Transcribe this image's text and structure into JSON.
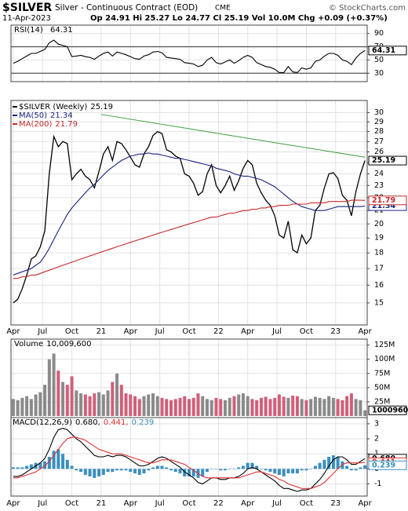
{
  "header": {
    "title": "$SILVER",
    "subtitle": "Silver - Continuous Contract (EOD)",
    "exchange": "CME",
    "source": "© StockCharts.com",
    "date": "11-Apr-2023",
    "quote": "Op 24.91 Hi 25.27 Lo 24.77 Cl 25.19 Vol 10.0M Chg +0.09 (+0.37%)"
  },
  "chart_data": [
    {
      "type": "line",
      "title": "RSI(14)",
      "xlim": [
        0,
        79
      ],
      "xticks": [
        0.5,
        7,
        13.5,
        20,
        26.5,
        33,
        39.5,
        46,
        52.5,
        59,
        65.5,
        72,
        78.5
      ],
      "ylim": [
        22,
        98
      ],
      "yticks": [
        30,
        50,
        70,
        90
      ],
      "bands": [
        30,
        70
      ],
      "grid": true,
      "series": [
        {
          "name": "RSI(14)",
          "color": "#000000",
          "values": [
            45,
            48,
            52,
            56,
            60,
            60,
            63,
            66,
            76,
            80,
            74,
            72,
            70,
            55,
            56,
            57,
            55,
            54,
            51,
            56,
            60,
            62,
            56,
            62,
            60,
            58,
            55,
            52,
            51,
            56,
            58,
            62,
            63,
            61,
            54,
            53,
            52,
            51,
            46,
            45,
            44,
            40,
            42,
            50,
            54,
            46,
            44,
            47,
            50,
            45,
            49,
            54,
            57,
            54,
            46,
            43,
            40,
            39,
            36,
            31,
            31,
            40,
            32,
            31,
            38,
            36,
            38,
            48,
            50,
            56,
            60,
            60,
            57,
            50,
            48,
            43,
            53,
            60,
            64.31
          ]
        }
      ]
    },
    {
      "type": "line",
      "log_scale": true,
      "xlim": [
        0,
        79
      ],
      "xticks": [
        {
          "value": 0.5,
          "label": "Apr"
        },
        {
          "value": 7,
          "label": "Jul"
        },
        {
          "value": 13.5,
          "label": "Oct"
        },
        {
          "value": 20,
          "label": "21"
        },
        {
          "value": 26.5,
          "label": "Apr"
        },
        {
          "value": 33,
          "label": "Jul"
        },
        {
          "value": 39.5,
          "label": "Oct"
        },
        {
          "value": 46,
          "label": "22"
        },
        {
          "value": 52.5,
          "label": "Apr"
        },
        {
          "value": 59,
          "label": "Jul"
        },
        {
          "value": 65.5,
          "label": "Oct"
        },
        {
          "value": 72,
          "label": "23"
        },
        {
          "value": 78.5,
          "label": "Apr"
        }
      ],
      "ylim": [
        14,
        31
      ],
      "yticks": [
        15,
        16,
        17,
        18,
        19,
        20,
        21,
        22,
        23,
        24,
        25,
        26,
        27,
        28,
        29,
        30
      ],
      "grid": true,
      "series": [
        {
          "name": "$SILVER (Weekly)",
          "color": "#000000",
          "values": [
            15.0,
            15.2,
            15.8,
            16.6,
            17.6,
            17.8,
            18.4,
            19.5,
            24.0,
            27.5,
            26.5,
            27.0,
            26.8,
            23.5,
            24.0,
            24.4,
            23.8,
            23.5,
            22.8,
            24.2,
            25.8,
            26.5,
            25.2,
            27.0,
            26.8,
            26.2,
            25.5,
            24.8,
            24.6,
            25.8,
            26.5,
            27.6,
            28.0,
            27.8,
            26.2,
            26.0,
            25.6,
            25.4,
            24.0,
            23.8,
            23.2,
            22.2,
            22.5,
            24.0,
            24.8,
            23.0,
            22.4,
            23.0,
            23.8,
            22.6,
            23.4,
            24.5,
            25.2,
            24.8,
            23.2,
            22.4,
            21.8,
            21.4,
            20.6,
            19.2,
            19.0,
            20.2,
            18.2,
            18.0,
            19.2,
            18.6,
            19.0,
            21.0,
            21.4,
            22.8,
            24.0,
            24.1,
            23.6,
            22.2,
            21.8,
            20.6,
            22.5,
            24.0,
            25.19
          ]
        },
        {
          "name": "MA(50)",
          "color": "#1a237e",
          "values": [
            16.6,
            16.7,
            16.8,
            16.9,
            17.0,
            17.2,
            17.4,
            17.8,
            18.3,
            18.9,
            19.5,
            20.1,
            20.7,
            21.2,
            21.6,
            22.0,
            22.4,
            22.8,
            23.1,
            23.5,
            23.9,
            24.3,
            24.6,
            24.9,
            25.2,
            25.4,
            25.6,
            25.7,
            25.8,
            25.8,
            25.9,
            25.8,
            25.8,
            25.7,
            25.6,
            25.5,
            25.4,
            25.4,
            25.3,
            25.2,
            25.1,
            25.0,
            24.9,
            24.8,
            24.7,
            24.5,
            24.4,
            24.3,
            24.2,
            24.0,
            23.9,
            23.8,
            23.8,
            23.7,
            23.6,
            23.5,
            23.3,
            23.1,
            22.9,
            22.6,
            22.3,
            22.0,
            21.7,
            21.5,
            21.3,
            21.2,
            21.1,
            21.0,
            21.0,
            21.0,
            21.1,
            21.2,
            21.3,
            21.3,
            21.3,
            21.3,
            21.3,
            21.3,
            21.34
          ]
        },
        {
          "name": "MA(200)",
          "color": "#c62828",
          "values": [
            16.4,
            16.4,
            16.5,
            16.5,
            16.6,
            16.6,
            16.7,
            16.8,
            16.9,
            17.0,
            17.1,
            17.2,
            17.3,
            17.4,
            17.5,
            17.6,
            17.7,
            17.8,
            17.9,
            18.0,
            18.1,
            18.2,
            18.3,
            18.4,
            18.5,
            18.6,
            18.7,
            18.8,
            18.9,
            19.0,
            19.1,
            19.2,
            19.3,
            19.4,
            19.5,
            19.6,
            19.7,
            19.8,
            19.9,
            20.0,
            20.1,
            20.2,
            20.3,
            20.4,
            20.5,
            20.5,
            20.6,
            20.7,
            20.8,
            20.8,
            20.9,
            21.0,
            21.0,
            21.1,
            21.1,
            21.2,
            21.2,
            21.3,
            21.3,
            21.4,
            21.4,
            21.4,
            21.5,
            21.5,
            21.5,
            21.5,
            21.6,
            21.6,
            21.6,
            21.6,
            21.7,
            21.7,
            21.7,
            21.7,
            21.7,
            21.8,
            21.8,
            21.8,
            21.79
          ]
        }
      ],
      "trendline": {
        "color": "#3a9e3a",
        "x": [
          20,
          78.5
        ],
        "values": [
          29.8,
          25.5
        ]
      }
    },
    {
      "type": "bar",
      "title": "Volume",
      "last_label": "10,009,600",
      "xlim": [
        0,
        79
      ],
      "xticks": [
        0.5,
        7,
        13.5,
        20,
        26.5,
        33,
        39.5,
        46,
        52.5,
        59,
        65.5,
        72,
        78.5
      ],
      "ylim": [
        0,
        130000000
      ],
      "yticks": [
        {
          "value": 25000000,
          "label": "25M"
        },
        {
          "value": 50000000,
          "label": "50M"
        },
        {
          "value": 75000000,
          "label": "75M"
        },
        {
          "value": 100000000,
          "label": "100M"
        },
        {
          "value": 125000000,
          "label": "125M"
        }
      ],
      "grid": true,
      "up_color": "#8a8a8a",
      "down_color": "#d0607a",
      "values": [
        30000000,
        28000000,
        32000000,
        35000000,
        30000000,
        38000000,
        42000000,
        55000000,
        100000000,
        110000000,
        80000000,
        60000000,
        55000000,
        70000000,
        45000000,
        40000000,
        38000000,
        35000000,
        40000000,
        42000000,
        38000000,
        45000000,
        60000000,
        75000000,
        55000000,
        40000000,
        38000000,
        35000000,
        30000000,
        35000000,
        38000000,
        40000000,
        35000000,
        32000000,
        30000000,
        28000000,
        30000000,
        32000000,
        35000000,
        30000000,
        32000000,
        40000000,
        35000000,
        30000000,
        28000000,
        32000000,
        30000000,
        28000000,
        32000000,
        35000000,
        38000000,
        40000000,
        35000000,
        30000000,
        28000000,
        32000000,
        34000000,
        30000000,
        32000000,
        38000000,
        34000000,
        32000000,
        36000000,
        35000000,
        30000000,
        28000000,
        30000000,
        34000000,
        32000000,
        30000000,
        35000000,
        32000000,
        30000000,
        28000000,
        35000000,
        40000000,
        30000000,
        28000000,
        10009600
      ]
    },
    {
      "type": "line",
      "title": "MACD(12,26,9)",
      "legend_labels": [
        "0.680,",
        "0.441,",
        "0.239"
      ],
      "end_labels": [
        "0.680",
        "0.441",
        "0.239"
      ],
      "xlim": [
        0,
        79
      ],
      "xticks": [
        {
          "value": 0.5,
          "label": "Apr"
        },
        {
          "value": 7,
          "label": "Jul"
        },
        {
          "value": 13.5,
          "label": "Oct"
        },
        {
          "value": 20,
          "label": "21"
        },
        {
          "value": 26.5,
          "label": "Apr"
        },
        {
          "value": 33,
          "label": "Jul"
        },
        {
          "value": 39.5,
          "label": "Oct"
        },
        {
          "value": 46,
          "label": "22"
        },
        {
          "value": 52.5,
          "label": "Apr"
        },
        {
          "value": 59,
          "label": "Jul"
        },
        {
          "value": 65.5,
          "label": "Oct"
        },
        {
          "value": 72,
          "label": "23"
        },
        {
          "value": 78.5,
          "label": "Apr"
        }
      ],
      "ylim": [
        -1.6,
        3.2
      ],
      "yticks": [
        -1,
        0,
        1,
        2,
        3
      ],
      "grid": true,
      "series": [
        {
          "name": "MACD",
          "color": "#000000",
          "values": [
            -0.5,
            -0.5,
            -0.4,
            -0.2,
            0.0,
            0.2,
            0.4,
            0.7,
            1.3,
            2.1,
            2.6,
            2.7,
            2.6,
            2.3,
            2.0,
            1.8,
            1.5,
            1.2,
            0.9,
            0.8,
            0.8,
            0.9,
            0.8,
            0.9,
            0.9,
            0.8,
            0.6,
            0.4,
            0.2,
            0.2,
            0.3,
            0.5,
            0.7,
            0.8,
            0.7,
            0.5,
            0.3,
            0.1,
            -0.2,
            -0.4,
            -0.6,
            -0.9,
            -1.0,
            -0.8,
            -0.6,
            -0.6,
            -0.7,
            -0.7,
            -0.6,
            -0.6,
            -0.5,
            -0.3,
            0.0,
            0.1,
            0.0,
            -0.2,
            -0.4,
            -0.6,
            -0.8,
            -1.1,
            -1.3,
            -1.3,
            -1.4,
            -1.5,
            -1.4,
            -1.4,
            -1.3,
            -1.0,
            -0.7,
            -0.3,
            0.2,
            0.6,
            0.8,
            0.8,
            0.6,
            0.3,
            0.3,
            0.5,
            0.68
          ]
        },
        {
          "name": "Signal",
          "color": "#e03030",
          "values": [
            -0.6,
            -0.6,
            -0.5,
            -0.4,
            -0.3,
            -0.2,
            0.0,
            0.2,
            0.5,
            0.9,
            1.3,
            1.7,
            2.0,
            2.1,
            2.1,
            2.0,
            1.9,
            1.7,
            1.5,
            1.3,
            1.2,
            1.1,
            1.0,
            1.0,
            1.0,
            0.9,
            0.8,
            0.7,
            0.6,
            0.5,
            0.4,
            0.4,
            0.5,
            0.6,
            0.6,
            0.6,
            0.5,
            0.4,
            0.3,
            0.1,
            -0.1,
            -0.3,
            -0.5,
            -0.6,
            -0.6,
            -0.6,
            -0.6,
            -0.6,
            -0.6,
            -0.6,
            -0.6,
            -0.5,
            -0.4,
            -0.3,
            -0.2,
            -0.2,
            -0.3,
            -0.4,
            -0.5,
            -0.7,
            -0.8,
            -1.0,
            -1.1,
            -1.2,
            -1.3,
            -1.3,
            -1.3,
            -1.2,
            -1.1,
            -0.9,
            -0.6,
            -0.3,
            0.0,
            0.3,
            0.4,
            0.4,
            0.4,
            0.4,
            0.441
          ]
        },
        {
          "name": "Histogram",
          "type": "bar",
          "color": "#3a8fbf",
          "values": [
            0.1,
            0.1,
            0.1,
            0.2,
            0.3,
            0.4,
            0.4,
            0.5,
            0.8,
            1.2,
            1.3,
            1.0,
            0.6,
            0.2,
            -0.1,
            -0.2,
            -0.4,
            -0.5,
            -0.6,
            -0.5,
            -0.4,
            -0.2,
            -0.2,
            -0.1,
            -0.1,
            -0.1,
            -0.2,
            -0.3,
            -0.4,
            -0.3,
            -0.1,
            0.1,
            0.2,
            0.2,
            0.1,
            -0.1,
            -0.2,
            -0.3,
            -0.5,
            -0.5,
            -0.5,
            -0.6,
            -0.5,
            -0.2,
            0.0,
            0.0,
            -0.1,
            -0.1,
            0.0,
            0.0,
            0.1,
            0.2,
            0.4,
            0.4,
            0.2,
            0.0,
            -0.1,
            -0.2,
            -0.3,
            -0.4,
            -0.5,
            -0.3,
            -0.3,
            -0.3,
            -0.1,
            -0.1,
            0.0,
            0.2,
            0.4,
            0.6,
            0.8,
            0.9,
            0.8,
            0.5,
            0.2,
            -0.1,
            -0.1,
            0.1,
            0.239
          ]
        }
      ]
    }
  ]
}
